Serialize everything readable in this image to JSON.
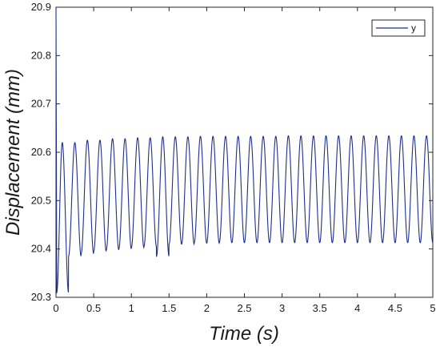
{
  "chart_data": {
    "type": "line",
    "xlabel": "Time (s)",
    "ylabel": "Displacement (mm)",
    "xlim": [
      0,
      5
    ],
    "ylim": [
      20.3,
      20.9
    ],
    "xticks": [
      "0",
      "0.5",
      "1",
      "1.5",
      "2",
      "2.5",
      "3",
      "3.5",
      "4",
      "4.5",
      "5"
    ],
    "yticks": [
      "20.3",
      "20.4",
      "20.5",
      "20.6",
      "20.7",
      "20.8",
      "20.9"
    ],
    "grid": false,
    "legend_position": "top-right",
    "series": [
      {
        "name": "y",
        "color": "#1f2f8c",
        "frequency_hz": 6,
        "cycles": 30,
        "initial_value": 20.9,
        "first_min": 20.31,
        "peaks": [
          20.62,
          20.62,
          20.625,
          20.625,
          20.628,
          20.628,
          20.63,
          20.63,
          20.632,
          20.632,
          20.632,
          20.633,
          20.633,
          20.633,
          20.633,
          20.633,
          20.633,
          20.633,
          20.634,
          20.634,
          20.634,
          20.634,
          20.634,
          20.634,
          20.634,
          20.634,
          20.634,
          20.634,
          20.634,
          20.634
        ],
        "troughs": [
          20.31,
          20.385,
          20.39,
          20.395,
          20.398,
          20.4,
          20.403,
          20.405,
          20.385,
          20.41,
          20.41,
          20.412,
          20.412,
          20.413,
          20.413,
          20.413,
          20.413,
          20.413,
          20.413,
          20.413,
          20.413,
          20.413,
          20.413,
          20.413,
          20.413,
          20.413,
          20.413,
          20.413,
          20.413,
          20.413
        ]
      }
    ]
  }
}
